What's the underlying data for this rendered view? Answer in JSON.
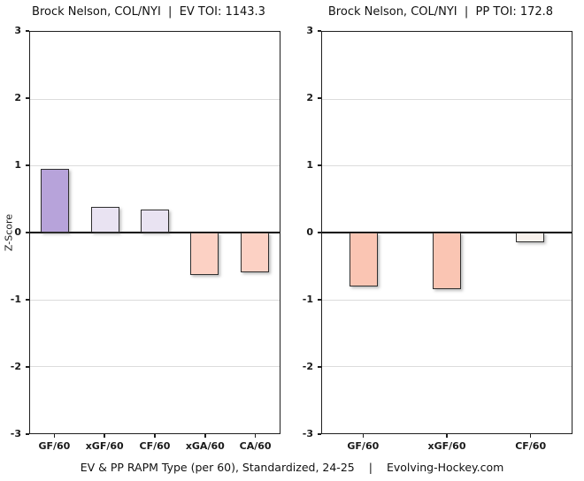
{
  "y_axis_label": "Z-Score",
  "footer": {
    "caption_left": "EV & PP RAPM Type (per 60), Standardized, 24-25",
    "caption_sep": "|",
    "caption_right": "Evolving-Hockey.com"
  },
  "chart_data": [
    {
      "type": "bar",
      "title": "Brock Nelson, COL/NYI  |  EV TOI: 1143.3",
      "player": "Brock Nelson",
      "teams": "COL/NYI",
      "toi_label": "EV TOI",
      "toi_value": "1143.3",
      "categories": [
        "GF/60",
        "xGF/60",
        "CF/60",
        "xGA/60",
        "CA/60"
      ],
      "values": [
        0.95,
        0.38,
        0.34,
        -0.64,
        -0.6
      ],
      "bar_colors": [
        "#b7a3da",
        "#e9e3f2",
        "#e9e3f2",
        "#fcd1c4",
        "#fcd1c4"
      ],
      "xlabel": "",
      "ylabel": "Z-Score",
      "ylim": [
        -3,
        3
      ],
      "yticks": [
        3,
        2,
        1,
        0,
        -1,
        -2,
        -3
      ],
      "grid": true,
      "legend": false
    },
    {
      "type": "bar",
      "title": "Brock Nelson, COL/NYI  |  PP TOI: 172.8",
      "player": "Brock Nelson",
      "teams": "COL/NYI",
      "toi_label": "PP TOI",
      "toi_value": "172.8",
      "categories": [
        "GF/60",
        "xGF/60",
        "CF/60"
      ],
      "values": [
        -0.8,
        -0.85,
        -0.15
      ],
      "bar_colors": [
        "#fac5b3",
        "#fac5b3",
        "#f8f1ec"
      ],
      "xlabel": "",
      "ylabel": "",
      "ylim": [
        -3,
        3
      ],
      "yticks": [
        3,
        2,
        1,
        0,
        -1,
        -2,
        -3
      ],
      "grid": true,
      "legend": false
    }
  ]
}
